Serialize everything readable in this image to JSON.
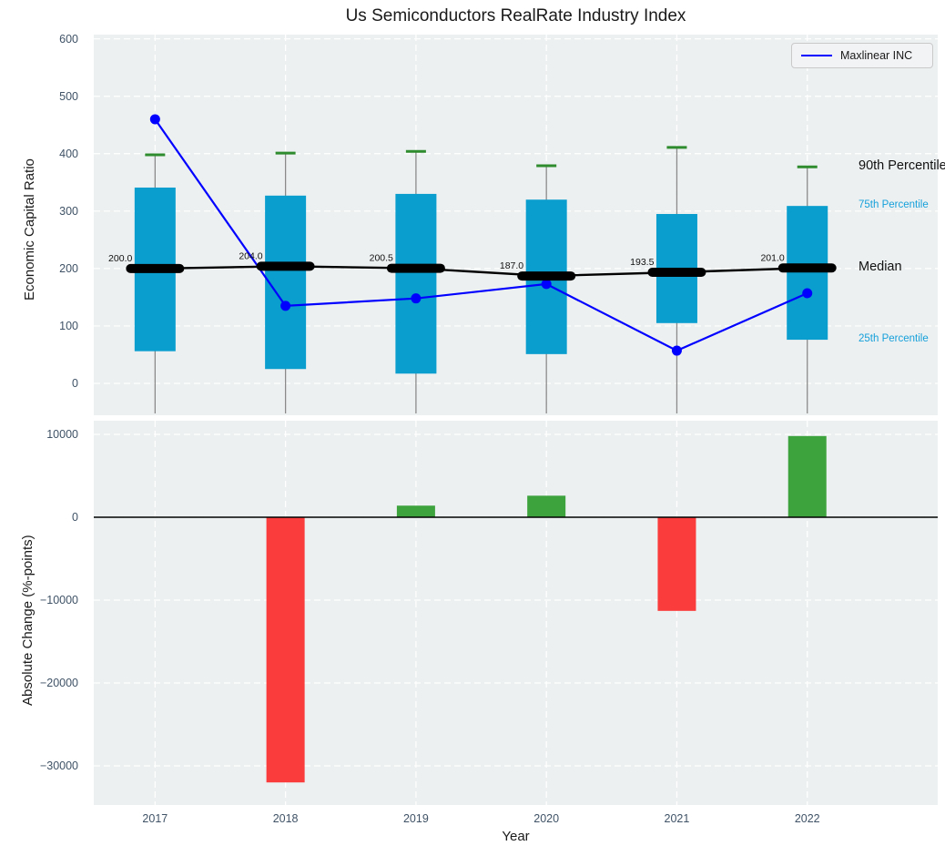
{
  "colors": {
    "figure_bg": "#ffffff",
    "axes_bg": "#edf0f1",
    "grid": "#ffffff",
    "tick_label": "#3f5266",
    "box_fill": "#0a9ecf",
    "whisker": "#8a8a8a",
    "cap_green": "#2e8b2e",
    "median_black": "#000000",
    "line_blue": "#0000ff",
    "bar_positive": "#3da33d",
    "bar_negative": "#fa3c3c",
    "annotation_blue": "#15a0da"
  },
  "legend": {
    "series_label": "Maxlinear INC"
  },
  "chart_data": [
    {
      "type": "boxplot+line",
      "title": "Us Semiconductors RealRate Industry Index",
      "ylabel": "Economic Capital Ratio",
      "x": [
        2017,
        2018,
        2019,
        2020,
        2021,
        2022
      ],
      "xlim": [
        2016.53,
        2023.0
      ],
      "ylim": [
        -55.5,
        607.4
      ],
      "ytick_values": [
        0,
        100,
        200,
        300,
        400,
        500,
        600
      ],
      "ytick_labels": [
        "0",
        "100",
        "200",
        "300",
        "400",
        "500",
        "600"
      ],
      "grid": true,
      "boxes": {
        "p90": [
          398,
          401,
          404,
          379,
          411,
          377
        ],
        "p75": [
          341,
          327,
          330,
          320,
          295,
          309
        ],
        "median": [
          200.0,
          204.0,
          200.5,
          187.0,
          193.5,
          201.0
        ],
        "p25": [
          56,
          25,
          17,
          51,
          105,
          76
        ]
      },
      "median_labels": [
        "200.0",
        "204.0",
        "200.5",
        "187.0",
        "193.5",
        "201.0"
      ],
      "series": [
        {
          "name": "Maxlinear INC",
          "values": [
            460,
            135,
            148,
            173,
            57,
            157
          ]
        }
      ],
      "legend_position": "upper right",
      "annotations": [
        {
          "label": "90th Percentile",
          "anchor": "p90",
          "style": "large"
        },
        {
          "label": "75th Percentile",
          "anchor": "p75",
          "style": "small"
        },
        {
          "label": "Median",
          "anchor": "median",
          "style": "large"
        },
        {
          "label": "25th Percentile",
          "anchor": "p25",
          "style": "small"
        }
      ]
    },
    {
      "type": "bar",
      "ylabel": "Absolute Change (%-points)",
      "xlabel": "Year",
      "categories": [
        "2017",
        "2018",
        "2019",
        "2020",
        "2021",
        "2022"
      ],
      "x": [
        2017,
        2018,
        2019,
        2020,
        2021,
        2022
      ],
      "values": [
        0,
        -32000,
        1400,
        2600,
        -11300,
        9800
      ],
      "xlim": [
        2016.53,
        2023.0
      ],
      "ylim": [
        -34725,
        11648
      ],
      "ytick_values": [
        10000,
        0,
        -10000,
        -20000,
        -30000
      ],
      "ytick_labels": [
        "10000",
        "0",
        "−10000",
        "−20000",
        "−30000"
      ],
      "grid": true,
      "zero_line": 0
    }
  ]
}
